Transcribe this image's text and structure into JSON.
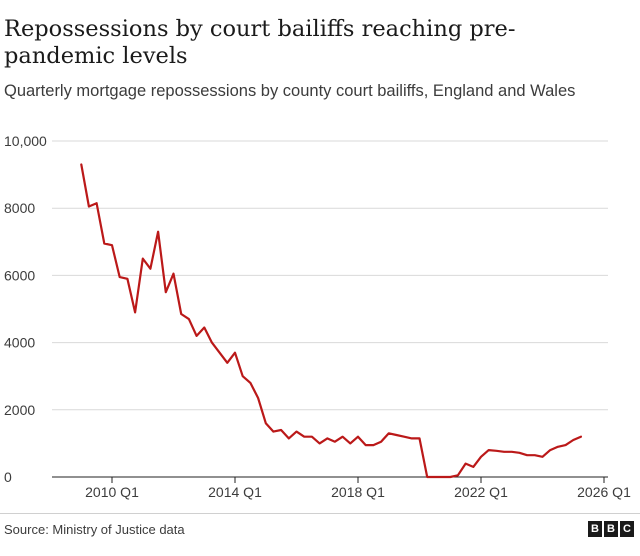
{
  "title": "Repossessions by court bailiffs reaching pre-pandemic levels",
  "subtitle": "Quarterly mortgage repossessions by county court bailiffs, England and Wales",
  "source": "Source: Ministry of Justice data",
  "logo_letters": [
    "B",
    "B",
    "C"
  ],
  "colors": {
    "line": "#bb1919",
    "grid": "#d9d9d9",
    "axis": "#222222"
  },
  "chart_data": {
    "type": "line",
    "title": "Repossessions by court bailiffs reaching pre-pandemic levels",
    "subtitle": "Quarterly mortgage repossessions by county court bailiffs, England and Wales",
    "xlabel": "",
    "ylabel": "",
    "ylim": [
      0,
      10000
    ],
    "y_ticks": [
      0,
      2000,
      4000,
      6000,
      8000,
      10000
    ],
    "y_tick_labels": [
      "0",
      "2000",
      "4000",
      "6000",
      "8000",
      "10,000"
    ],
    "x_ticks": [
      "2010 Q1",
      "2014 Q1",
      "2018 Q1",
      "2022 Q1",
      "2026 Q1"
    ],
    "grid": "horizontal",
    "series": [
      {
        "x": [
          "2009 Q1",
          "2009 Q2",
          "2009 Q3",
          "2009 Q4",
          "2010 Q1",
          "2010 Q2",
          "2010 Q3",
          "2010 Q4",
          "2011 Q1",
          "2011 Q2",
          "2011 Q3",
          "2011 Q4",
          "2012 Q1",
          "2012 Q2",
          "2012 Q3",
          "2012 Q4",
          "2013 Q1",
          "2013 Q2",
          "2013 Q3",
          "2013 Q4",
          "2014 Q1",
          "2014 Q2",
          "2014 Q3",
          "2014 Q4",
          "2015 Q1",
          "2015 Q2",
          "2015 Q3",
          "2015 Q4",
          "2016 Q1",
          "2016 Q2",
          "2016 Q3",
          "2016 Q4",
          "2017 Q1",
          "2017 Q2",
          "2017 Q3",
          "2017 Q4",
          "2018 Q1",
          "2018 Q2",
          "2018 Q3",
          "2018 Q4",
          "2019 Q1",
          "2019 Q2",
          "2019 Q3",
          "2019 Q4",
          "2020 Q1",
          "2020 Q2",
          "2020 Q3",
          "2020 Q4",
          "2021 Q1",
          "2021 Q2",
          "2021 Q3",
          "2021 Q4",
          "2022 Q1",
          "2022 Q2",
          "2022 Q3",
          "2022 Q4",
          "2023 Q1",
          "2023 Q2",
          "2023 Q3",
          "2023 Q4",
          "2024 Q1",
          "2024 Q2",
          "2024 Q3",
          "2024 Q4",
          "2025 Q1",
          "2025 Q2"
        ],
        "values": [
          9300,
          8050,
          8150,
          6950,
          6900,
          5950,
          5900,
          4900,
          6500,
          6200,
          7300,
          5500,
          6050,
          4850,
          4700,
          4200,
          4450,
          4000,
          3700,
          3400,
          3700,
          3000,
          2800,
          2350,
          1600,
          1350,
          1400,
          1150,
          1350,
          1200,
          1200,
          1000,
          1150,
          1050,
          1200,
          1000,
          1200,
          950,
          950,
          1050,
          1300,
          1250,
          1200,
          1150,
          1150,
          0,
          0,
          0,
          0,
          50,
          400,
          300,
          600,
          800,
          780,
          750,
          750,
          720,
          650,
          650,
          600,
          800,
          900,
          950,
          1100,
          1200
        ]
      }
    ]
  }
}
